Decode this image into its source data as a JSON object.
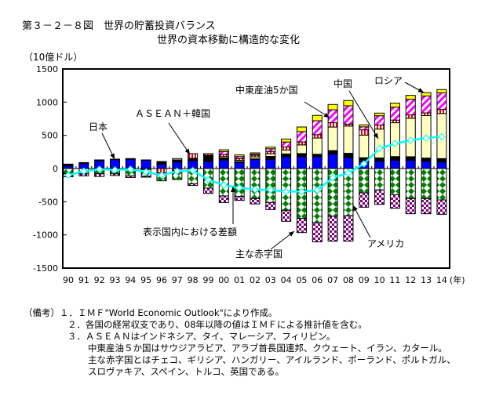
{
  "title": "第３－２－８図　世界の貯蓄投資バランス",
  "subtitle": "世界の資本移動に構造的な変化",
  "notes": [
    "（備考）１．ＩＭＦ\"World Economic Outlook\"により作成。",
    "２．各国の経常収支であり、08年以降の値はＩＭＦによる推計値を含む。",
    "３．ＡＳＥＡＮはインドネシア、タイ、マレーシア、フィリピン。",
    "中東産油５か国はサウジアラビア、アラブ首長国連邦、クウェート、イラン、カタール。",
    "主な赤字国とはチェコ、ギリシア、ハンガリー、アイルランド、ポーランド、ポルトガル、",
    "スロヴァキア、スペイン、トルコ、英国である。"
  ],
  "chart_data": {
    "type": "bar",
    "stacked": true,
    "ylabel": "（10億ドル）",
    "xlabel_suffix": "(年)",
    "ylim": [
      -1500,
      1500
    ],
    "yticks": [
      1500,
      1000,
      500,
      0,
      -500,
      -1000,
      -1500
    ],
    "categories": [
      "90",
      "91",
      "92",
      "93",
      "94",
      "95",
      "96",
      "97",
      "98",
      "99",
      "00",
      "01",
      "02",
      "03",
      "04",
      "05",
      "06",
      "07",
      "08",
      "09",
      "10",
      "11",
      "12",
      "13",
      "14"
    ],
    "series": [
      {
        "name": "日本",
        "color": "#0000FF",
        "pattern": "solid",
        "values": [
          40,
          75,
          120,
          135,
          140,
          125,
          67,
          98,
          118,
          106,
          130,
          90,
          138,
          138,
          177,
          177,
          177,
          217,
          165,
          110,
          110,
          126,
          126,
          110,
          98
        ]
      },
      {
        "color": "#000000",
        "pattern": "solid",
        "values": [
          27,
          15,
          10,
          7,
          10,
          5,
          39,
          32,
          37,
          94,
          30,
          15,
          8,
          45,
          43,
          49,
          38,
          53,
          65,
          53,
          50,
          54,
          52,
          48,
          52
        ]
      },
      {
        "name": "中国",
        "color": "#FFFFC0",
        "pattern": "solid",
        "values": [
          0,
          0,
          0,
          0,
          0,
          0,
          0,
          20,
          0,
          0,
          20,
          20,
          30,
          40,
          60,
          130,
          245,
          355,
          410,
          340,
          435,
          510,
          580,
          640,
          680
        ]
      },
      {
        "name": "ＡＳＥＡＮ＋韓国",
        "color": "#FF0000",
        "pattern": "vstripe",
        "values": [
          0,
          0,
          0,
          0,
          0,
          -15,
          -65,
          -30,
          70,
          25,
          30,
          25,
          25,
          35,
          45,
          45,
          50,
          65,
          30,
          80,
          60,
          40,
          50,
          40,
          60
        ]
      },
      {
        "name": "中東産油5か国",
        "color": "#FF00FF",
        "pattern": "diagonal",
        "values": [
          0,
          0,
          0,
          0,
          0,
          0,
          0,
          0,
          0,
          0,
          45,
          30,
          15,
          40,
          75,
          155,
          210,
          195,
          275,
          45,
          140,
          195,
          235,
          255,
          250
        ]
      },
      {
        "name": "ロシア",
        "color": "#FFFF00",
        "pattern": "solid",
        "values": [
          0,
          0,
          0,
          0,
          0,
          0,
          0,
          0,
          0,
          0,
          28,
          25,
          20,
          25,
          45,
          70,
          80,
          80,
          80,
          30,
          40,
          60,
          60,
          50,
          50
        ]
      },
      {
        "name": "アメリカ",
        "color": "#008000",
        "pattern": "diamond",
        "values": [
          -80,
          -80,
          -80,
          -80,
          -110,
          -100,
          -120,
          -135,
          -230,
          -295,
          -413,
          -420,
          -453,
          -512,
          -630,
          -750,
          -815,
          -720,
          -710,
          -366,
          -323,
          -394,
          -453,
          -453,
          -473
        ]
      },
      {
        "name": "主な赤字国",
        "color": "#800080",
        "pattern": "checker",
        "values": [
          -45,
          -30,
          -40,
          -25,
          -25,
          -15,
          0,
          0,
          -25,
          -80,
          -100,
          -60,
          -80,
          -106,
          -165,
          -215,
          -290,
          -375,
          -385,
          -217,
          -217,
          -205,
          -228,
          -228,
          -217
        ]
      }
    ],
    "line": {
      "name": "表示国内における差額",
      "color": "#00FFFF",
      "values": [
        -100,
        -40,
        -10,
        -20,
        -10,
        -50,
        -100,
        -40,
        -30,
        -170,
        -248,
        -290,
        -315,
        -323,
        -347,
        -347,
        -327,
        -138,
        -67,
        71,
        303,
        374,
        425,
        461,
        480
      ]
    },
    "annotations": [
      {
        "text": "日本",
        "target": "93"
      },
      {
        "text": "ＡＳＥＡＮ＋韓国",
        "target": "98"
      },
      {
        "text": "中東産油5か国",
        "target": "07"
      },
      {
        "text": "中国",
        "target": "10"
      },
      {
        "text": "ロシア",
        "target": "13"
      },
      {
        "text": "表示国内における差額",
        "target": "02"
      },
      {
        "text": "主な赤字国",
        "target": "05"
      },
      {
        "text": "アメリカ",
        "target": "08"
      }
    ],
    "grid": false,
    "legend": "none (callout labels with arrows)"
  }
}
